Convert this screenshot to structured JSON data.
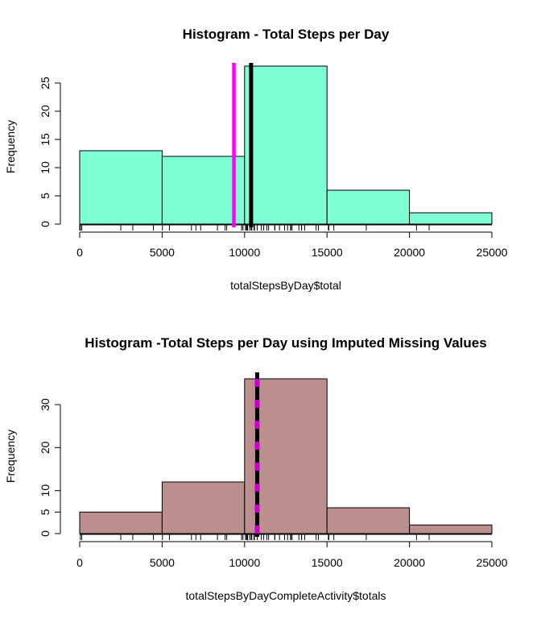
{
  "chart_data": [
    {
      "type": "bar",
      "subtype": "histogram",
      "title": "Histogram - Total Steps per Day",
      "xlabel": "totalStepsByDay$total",
      "ylabel": "Frequency",
      "bins": [
        {
          "from": 0,
          "to": 5000,
          "count": 13
        },
        {
          "from": 5000,
          "to": 10000,
          "count": 12
        },
        {
          "from": 10000,
          "to": 15000,
          "count": 28
        },
        {
          "from": 15000,
          "to": 20000,
          "count": 6
        },
        {
          "from": 20000,
          "to": 25000,
          "count": 2
        }
      ],
      "xlim": [
        0,
        25000
      ],
      "ylim": [
        0,
        28
      ],
      "xticks": [
        0,
        5000,
        10000,
        15000,
        20000,
        25000
      ],
      "yticks": [
        0,
        5,
        10,
        15,
        20,
        25
      ],
      "bar_color": "#7fffd4",
      "reference_lines": [
        {
          "value": 9354,
          "color": "#ff00ff",
          "style": "solid"
        },
        {
          "value": 10395,
          "color": "#000000",
          "style": "solid"
        }
      ],
      "rug": [
        0,
        41,
        126,
        2492,
        3219,
        4472,
        5018,
        5441,
        6778,
        7047,
        7336,
        8355,
        8821,
        8918,
        9819,
        9900,
        10056,
        10119,
        10139,
        10183,
        10304,
        10395,
        10439,
        10571,
        10600,
        10765,
        11015,
        11162,
        11352,
        11458,
        11829,
        11834,
        12116,
        12426,
        12608,
        12787,
        12811,
        12883,
        13294,
        13452,
        13460,
        13646,
        14339,
        14478,
        15084,
        15098,
        15110,
        15414,
        17382,
        20427,
        21194
      ]
    },
    {
      "type": "bar",
      "subtype": "histogram",
      "title": "Histogram -Total Steps per Day using Imputed Missing Values",
      "xlabel": "totalStepsByDayCompleteActivity$totals",
      "ylabel": "Frequency",
      "bins": [
        {
          "from": 0,
          "to": 5000,
          "count": 5
        },
        {
          "from": 5000,
          "to": 10000,
          "count": 12
        },
        {
          "from": 10000,
          "to": 15000,
          "count": 36
        },
        {
          "from": 15000,
          "to": 20000,
          "count": 6
        },
        {
          "from": 20000,
          "to": 25000,
          "count": 2
        }
      ],
      "xlim": [
        0,
        25000
      ],
      "ylim": [
        0,
        36
      ],
      "xticks": [
        0,
        5000,
        10000,
        15000,
        20000,
        25000
      ],
      "yticks": [
        0,
        5,
        10,
        20,
        30
      ],
      "bar_color": "#bc8f8f",
      "reference_lines": [
        {
          "value": 10766,
          "color": "#000000",
          "style": "solid"
        },
        {
          "value": 10766,
          "color": "#cc00cc",
          "style": "dashed"
        }
      ],
      "rug": [
        41,
        126,
        2492,
        3219,
        4472,
        5018,
        5441,
        6778,
        7047,
        7336,
        8355,
        8821,
        8918,
        9819,
        9900,
        10056,
        10119,
        10139,
        10183,
        10304,
        10395,
        10439,
        10571,
        10600,
        10766,
        11015,
        11162,
        11352,
        11458,
        11829,
        11834,
        12116,
        12426,
        12608,
        12787,
        12811,
        12883,
        13294,
        13452,
        13460,
        13646,
        14339,
        14478,
        15084,
        15098,
        15110,
        15414,
        17382,
        20427,
        21194
      ]
    }
  ]
}
